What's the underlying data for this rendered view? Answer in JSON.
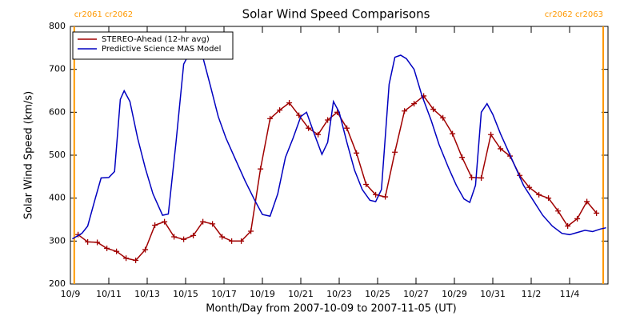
{
  "chart_data": {
    "type": "line",
    "title": "Solar Wind Speed Comparisons",
    "xlabel": "Month/Day from 2007-10-09 to 2007-11-05 (UT)",
    "ylabel": "Solar Wind Speed (km/s)",
    "xlim": [
      0,
      28
    ],
    "xticks": [
      {
        "value": 0,
        "label": "10/9"
      },
      {
        "value": 2,
        "label": "10/11"
      },
      {
        "value": 4,
        "label": "10/13"
      },
      {
        "value": 6,
        "label": "10/15"
      },
      {
        "value": 8,
        "label": "10/17"
      },
      {
        "value": 10,
        "label": "10/19"
      },
      {
        "value": 12,
        "label": "10/21"
      },
      {
        "value": 14,
        "label": "10/23"
      },
      {
        "value": 16,
        "label": "10/25"
      },
      {
        "value": 18,
        "label": "10/27"
      },
      {
        "value": 20,
        "label": "10/29"
      },
      {
        "value": 22,
        "label": "10/31"
      },
      {
        "value": 24,
        "label": "11/2"
      },
      {
        "value": 26,
        "label": "11/4"
      }
    ],
    "ylim": [
      200,
      800
    ],
    "yticks": [
      200,
      300,
      400,
      500,
      600,
      700,
      800
    ],
    "legend": "upper left",
    "annotations": [
      {
        "text": "cr2061 cr2062",
        "x": 0.2,
        "color": "#ff9900"
      },
      {
        "text": "cr2062 cr2063",
        "x": 27.75,
        "color": "#ff9900"
      }
    ],
    "series": [
      {
        "name": "STEREO-Ahead (12-hr avg)",
        "color": "#a00000",
        "markers": true,
        "x": [
          0.4,
          0.9,
          1.4,
          1.9,
          2.4,
          2.9,
          3.4,
          3.9,
          4.4,
          4.9,
          5.4,
          5.9,
          6.4,
          6.9,
          7.4,
          7.9,
          8.4,
          8.9,
          9.4,
          9.9,
          10.4,
          10.9,
          11.4,
          11.9,
          12.4,
          12.9,
          13.4,
          13.9,
          14.4,
          14.9,
          15.4,
          15.9,
          16.4,
          16.9,
          17.4,
          17.9,
          18.4,
          18.9,
          19.4,
          19.9,
          20.4,
          20.9,
          21.4,
          21.9,
          22.4,
          22.9,
          23.4,
          23.9,
          24.4,
          24.9,
          25.4,
          25.9,
          26.4,
          26.9,
          27.4
        ],
        "values": [
          315,
          298,
          297,
          283,
          276,
          260,
          255,
          280,
          337,
          345,
          310,
          304,
          313,
          345,
          340,
          310,
          300,
          300,
          323,
          468,
          585,
          605,
          622,
          593,
          563,
          548,
          582,
          600,
          563,
          505,
          432,
          408,
          403,
          507,
          603,
          620,
          638,
          607,
          587,
          550,
          495,
          448,
          447,
          548,
          515,
          498,
          453,
          425,
          408,
          400,
          370,
          335,
          352,
          392,
          365
        ]
      },
      {
        "name": "Predictive Science MAS Model",
        "color": "#0000c0",
        "markers": false,
        "x": [
          0.1,
          0.6,
          0.9,
          1.3,
          1.6,
          2.0,
          2.3,
          2.6,
          2.8,
          3.1,
          3.5,
          3.9,
          4.3,
          4.8,
          5.1,
          5.5,
          5.9,
          6.2,
          6.5,
          6.9,
          7.3,
          7.7,
          8.1,
          8.6,
          9.1,
          9.6,
          10.0,
          10.4,
          10.8,
          11.2,
          11.6,
          12.0,
          12.3,
          12.7,
          13.1,
          13.4,
          13.7,
          14.0,
          14.4,
          14.8,
          15.2,
          15.6,
          15.9,
          16.2,
          16.6,
          16.9,
          17.2,
          17.5,
          17.9,
          18.3,
          18.8,
          19.2,
          19.7,
          20.1,
          20.5,
          20.8,
          21.1,
          21.4,
          21.7,
          22.0,
          22.4,
          22.8,
          23.2,
          23.6,
          24.1,
          24.6,
          25.1,
          25.6,
          26.0,
          26.4,
          26.8,
          27.2,
          27.6,
          27.9
        ],
        "values": [
          305,
          318,
          335,
          400,
          447,
          448,
          462,
          630,
          650,
          625,
          540,
          470,
          410,
          360,
          363,
          530,
          712,
          738,
          740,
          728,
          660,
          590,
          540,
          490,
          440,
          395,
          362,
          358,
          410,
          495,
          540,
          590,
          600,
          550,
          502,
          530,
          625,
          600,
          530,
          465,
          420,
          395,
          392,
          420,
          665,
          728,
          733,
          725,
          700,
          640,
          580,
          525,
          470,
          430,
          398,
          390,
          430,
          600,
          620,
          595,
          550,
          510,
          470,
          430,
          395,
          360,
          335,
          318,
          315,
          320,
          325,
          322,
          328,
          331
        ]
      }
    ]
  }
}
